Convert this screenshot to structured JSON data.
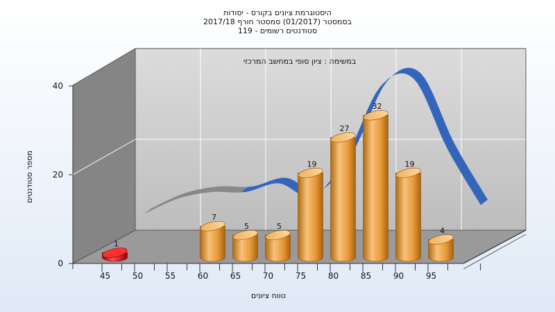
{
  "chart_data": {
    "type": "bar",
    "title_lines": [
      "היסטוגרמת ציונים בקורס - יסודות",
      "בסמסטר  (01/2017)  סמסטר חורף 2017/18",
      "סטודנטים רשומים - 119"
    ],
    "annotation": "במשימה : ציון סופי במחשב המרכזי",
    "xlabel": "טווח ציונים",
    "ylabel": "מספר סטודנטים",
    "x_ticks": [
      "45",
      "50",
      "55",
      "60",
      "65",
      "70",
      "75",
      "80",
      "85",
      "90",
      "95"
    ],
    "y_ticks": [
      "0",
      "20",
      "40"
    ],
    "ylim": [
      0,
      40
    ],
    "bars": [
      {
        "x": 45,
        "value": 1,
        "color": "#e02020"
      },
      {
        "x": 60,
        "value": 7,
        "color": "#e8a040"
      },
      {
        "x": 65,
        "value": 5,
        "color": "#e8a040"
      },
      {
        "x": 70,
        "value": 5,
        "color": "#e8a040"
      },
      {
        "x": 75,
        "value": 19,
        "color": "#e8a040"
      },
      {
        "x": 80,
        "value": 27,
        "color": "#e8a040"
      },
      {
        "x": 85,
        "value": 32,
        "color": "#e8a040"
      },
      {
        "x": 90,
        "value": 19,
        "color": "#e8a040"
      },
      {
        "x": 95,
        "value": 4,
        "color": "#e8a040"
      }
    ],
    "curve": {
      "color": "#3366bb",
      "faded_color": "#888888",
      "points": [
        [
          50,
          5
        ],
        [
          55,
          8.5
        ],
        [
          60,
          10
        ],
        [
          65,
          10
        ],
        [
          70,
          12
        ],
        [
          75,
          9
        ],
        [
          80,
          18
        ],
        [
          85,
          34
        ],
        [
          90,
          36
        ],
        [
          95,
          20
        ],
        [
          100,
          7
        ]
      ]
    },
    "grid": true
  }
}
